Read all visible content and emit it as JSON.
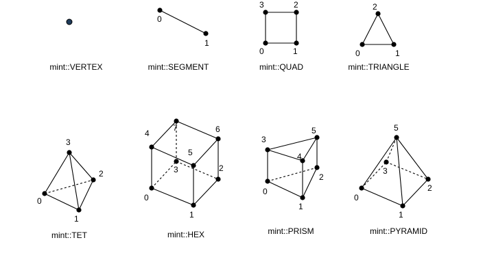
{
  "shapes": [
    {
      "id": "vertex",
      "caption": "mint::VERTEX",
      "vertices": [
        {
          "label": "",
          "highlight": true
        }
      ],
      "edges": []
    },
    {
      "id": "segment",
      "caption": "mint::SEGMENT",
      "vertices": [
        {
          "label": "0"
        },
        {
          "label": "1"
        }
      ],
      "edges": [
        {
          "a": 0,
          "b": 1
        }
      ]
    },
    {
      "id": "quad",
      "caption": "mint::QUAD",
      "vertices": [
        {
          "label": "0"
        },
        {
          "label": "1"
        },
        {
          "label": "2"
        },
        {
          "label": "3"
        }
      ],
      "edges": [
        {
          "a": 0,
          "b": 1
        },
        {
          "a": 1,
          "b": 2
        },
        {
          "a": 2,
          "b": 3
        },
        {
          "a": 3,
          "b": 0
        }
      ]
    },
    {
      "id": "triangle",
      "caption": "mint::TRIANGLE",
      "vertices": [
        {
          "label": "0"
        },
        {
          "label": "1"
        },
        {
          "label": "2"
        }
      ],
      "edges": [
        {
          "a": 0,
          "b": 1
        },
        {
          "a": 1,
          "b": 2
        },
        {
          "a": 2,
          "b": 0
        }
      ]
    },
    {
      "id": "tet",
      "caption": "mint::TET",
      "vertices": [
        {
          "label": "0"
        },
        {
          "label": "1"
        },
        {
          "label": "2"
        },
        {
          "label": "3"
        }
      ],
      "edges": [
        {
          "a": 0,
          "b": 1
        },
        {
          "a": 1,
          "b": 2
        },
        {
          "a": 0,
          "b": 2,
          "hidden": true
        },
        {
          "a": 3,
          "b": 0
        },
        {
          "a": 3,
          "b": 1
        },
        {
          "a": 3,
          "b": 2
        }
      ]
    },
    {
      "id": "hex",
      "caption": "mint::HEX",
      "vertices": [
        {
          "label": "0"
        },
        {
          "label": "1"
        },
        {
          "label": "2"
        },
        {
          "label": "3"
        },
        {
          "label": "4"
        },
        {
          "label": "5"
        },
        {
          "label": "6"
        },
        {
          "label": "7"
        }
      ],
      "edges": [
        {
          "a": 0,
          "b": 1
        },
        {
          "a": 1,
          "b": 2
        },
        {
          "a": 2,
          "b": 6
        },
        {
          "a": 6,
          "b": 7
        },
        {
          "a": 7,
          "b": 4
        },
        {
          "a": 4,
          "b": 0
        },
        {
          "a": 4,
          "b": 5
        },
        {
          "a": 5,
          "b": 6
        },
        {
          "a": 5,
          "b": 1
        },
        {
          "a": 0,
          "b": 3,
          "hidden": true
        },
        {
          "a": 3,
          "b": 2,
          "hidden": true
        },
        {
          "a": 3,
          "b": 7,
          "hidden": true
        }
      ]
    },
    {
      "id": "prism",
      "caption": "mint::PRISM",
      "vertices": [
        {
          "label": "0"
        },
        {
          "label": "1"
        },
        {
          "label": "2"
        },
        {
          "label": "3"
        },
        {
          "label": "4"
        },
        {
          "label": "5"
        }
      ],
      "edges": [
        {
          "a": 0,
          "b": 1
        },
        {
          "a": 1,
          "b": 2
        },
        {
          "a": 0,
          "b": 2,
          "hidden": true
        },
        {
          "a": 3,
          "b": 4
        },
        {
          "a": 4,
          "b": 5
        },
        {
          "a": 5,
          "b": 3
        },
        {
          "a": 0,
          "b": 3
        },
        {
          "a": 1,
          "b": 4
        },
        {
          "a": 2,
          "b": 5
        }
      ]
    },
    {
      "id": "pyramid",
      "caption": "mint::PYRAMID",
      "vertices": [
        {
          "label": "0"
        },
        {
          "label": "1"
        },
        {
          "label": "2"
        },
        {
          "label": "3"
        },
        {
          "label": "5"
        }
      ],
      "edges": [
        {
          "a": 0,
          "b": 1
        },
        {
          "a": 1,
          "b": 2
        },
        {
          "a": 0,
          "b": 3,
          "hidden": true
        },
        {
          "a": 3,
          "b": 2,
          "hidden": true
        },
        {
          "a": 4,
          "b": 0
        },
        {
          "a": 4,
          "b": 1
        },
        {
          "a": 4,
          "b": 2
        },
        {
          "a": 4,
          "b": 3,
          "hidden": true
        }
      ]
    }
  ]
}
